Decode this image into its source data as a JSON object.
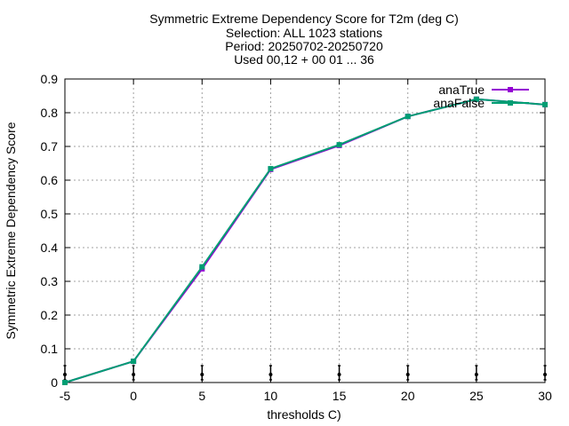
{
  "chart_data": {
    "type": "line",
    "title_lines": [
      "Symmetric Extreme Dependency Score  for T2m (deg C)",
      "Selection: ALL   1023 stations",
      "Period: 20250702-20250720",
      "Used 00,12 + 00 01 ... 36"
    ],
    "xlabel": "thresholds C)",
    "ylabel": "Symmetric Extreme Dependency Score",
    "xlim": [
      -5,
      30
    ],
    "ylim": [
      0,
      0.9
    ],
    "xticks": [
      -5,
      0,
      5,
      10,
      15,
      20,
      25,
      30
    ],
    "yticks": [
      0,
      0.1,
      0.2,
      0.3,
      0.4,
      0.5,
      0.6,
      0.7,
      0.8,
      0.9
    ],
    "xtick_labels": [
      "-5",
      "0",
      "5",
      "10",
      "15",
      "20",
      "25",
      "30"
    ],
    "ytick_labels": [
      "0",
      "0.1",
      "0.2",
      "0.3",
      "0.4",
      "0.5",
      "0.6",
      "0.7",
      "0.8",
      "0.9"
    ],
    "grid": true,
    "legend_position": "top-right",
    "x": [
      -5,
      0,
      5,
      10,
      15,
      20,
      25,
      30
    ],
    "series": [
      {
        "name": "anaTrue",
        "color": "#9400d3",
        "values": [
          0.0,
          0.063,
          0.337,
          0.632,
          0.703,
          0.789,
          0.84,
          0.824
        ]
      },
      {
        "name": "anaFalse",
        "color": "#009e73",
        "values": [
          0.0,
          0.063,
          0.343,
          0.634,
          0.705,
          0.789,
          0.84,
          0.824
        ]
      }
    ],
    "marker_x": [
      -5,
      0,
      5,
      10,
      15,
      20,
      25,
      30
    ]
  }
}
